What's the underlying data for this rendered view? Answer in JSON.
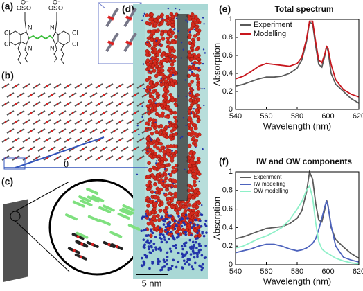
{
  "panels": [
    "(a)",
    "(b)",
    "(c)",
    "(d)"
  ],
  "structure_labels": [
    "O⁻",
    "O",
    "S",
    "O",
    "O⁻",
    "O",
    "S",
    "O",
    "Cl",
    "Cl",
    "N",
    "N",
    "N",
    "N",
    "Cl",
    "Cl"
  ],
  "angle_label": "θ",
  "scale_bar": "5 nm",
  "chart_data": [
    {
      "type": "line",
      "panel": "(e)",
      "title": "Total spectrum",
      "x_label": "Wavelength (nm)",
      "y_label": "Absorption",
      "x": [
        540,
        545,
        550,
        555,
        560,
        565,
        570,
        575,
        580,
        583,
        586,
        588,
        590,
        592,
        594,
        596,
        598,
        599,
        600,
        602,
        605,
        610,
        615,
        620
      ],
      "series": [
        {
          "name": "Experiment",
          "color": "#5a5a5a",
          "values": [
            0.26,
            0.28,
            0.31,
            0.34,
            0.36,
            0.36,
            0.37,
            0.4,
            0.46,
            0.55,
            0.75,
            0.97,
            0.95,
            0.7,
            0.5,
            0.47,
            0.6,
            0.7,
            0.65,
            0.4,
            0.28,
            0.2,
            0.12,
            0.07
          ]
        },
        {
          "name": "Modelling",
          "color": "#c8161d",
          "values": [
            0.34,
            0.37,
            0.42,
            0.48,
            0.51,
            0.5,
            0.49,
            0.48,
            0.51,
            0.58,
            0.78,
            0.98,
            0.98,
            0.75,
            0.55,
            0.52,
            0.62,
            0.7,
            0.68,
            0.5,
            0.33,
            0.22,
            0.17,
            0.14
          ]
        }
      ],
      "xlim": [
        540,
        620
      ],
      "xticks": [
        540,
        560,
        580,
        600,
        620
      ],
      "ylim": [
        0,
        1
      ],
      "yticks": [
        0,
        0.2,
        0.4,
        0.6,
        0.8,
        1
      ],
      "legend": "upper-left"
    },
    {
      "type": "line",
      "panel": "(f)",
      "title": "IW and OW components",
      "x_label": "Wavelength (nm)",
      "y_label": "Absorption",
      "x": [
        540,
        545,
        550,
        555,
        560,
        565,
        570,
        575,
        580,
        583,
        586,
        588,
        590,
        592,
        594,
        596,
        598,
        599,
        600,
        602,
        605,
        610,
        615,
        620
      ],
      "series": [
        {
          "name": "Experiment",
          "color": "#5a5a5a",
          "values": [
            0.28,
            0.3,
            0.33,
            0.36,
            0.39,
            0.4,
            0.41,
            0.44,
            0.5,
            0.58,
            0.78,
            1.0,
            0.92,
            0.66,
            0.48,
            0.46,
            0.6,
            0.7,
            0.64,
            0.4,
            0.27,
            0.19,
            0.12,
            0.07
          ]
        },
        {
          "name": "IW modelling",
          "color": "#4d63bd",
          "values": [
            0.13,
            0.15,
            0.17,
            0.2,
            0.22,
            0.22,
            0.2,
            0.17,
            0.15,
            0.16,
            0.18,
            0.2,
            0.23,
            0.28,
            0.38,
            0.5,
            0.63,
            0.68,
            0.63,
            0.42,
            0.2,
            0.08,
            0.05,
            0.03
          ]
        },
        {
          "name": "OW modelling",
          "color": "#8ef0c8",
          "values": [
            0.18,
            0.2,
            0.24,
            0.28,
            0.31,
            0.35,
            0.4,
            0.48,
            0.6,
            0.68,
            0.8,
            0.85,
            0.72,
            0.45,
            0.25,
            0.17,
            0.14,
            0.13,
            0.12,
            0.1,
            0.07,
            0.04,
            0.02,
            0.01
          ]
        }
      ],
      "xlim": [
        540,
        620
      ],
      "xticks": [
        540,
        560,
        580,
        600,
        620
      ],
      "ylim": [
        0,
        1
      ],
      "yticks": [
        0,
        0.2,
        0.4,
        0.6,
        0.8,
        1
      ],
      "legend": "upper-left"
    }
  ]
}
